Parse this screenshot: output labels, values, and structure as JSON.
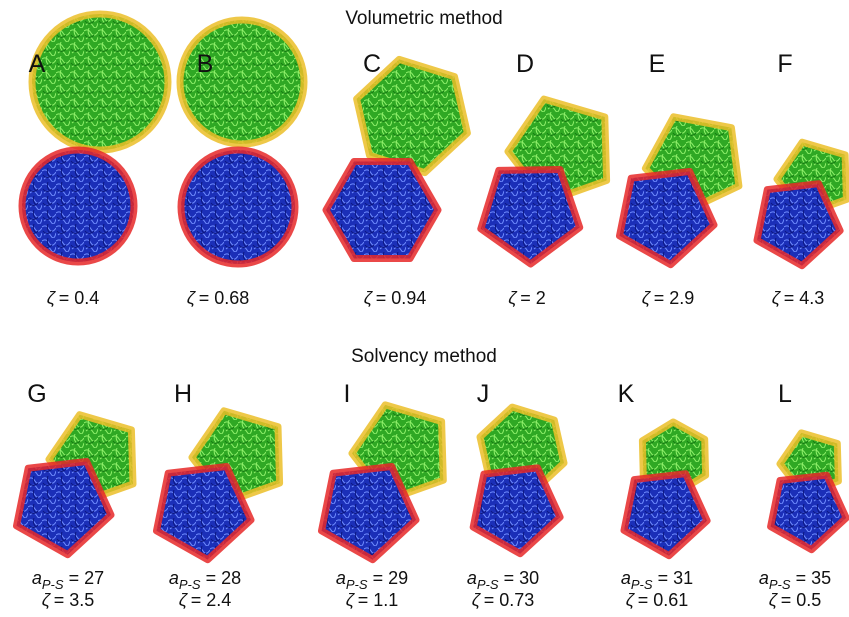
{
  "sections": [
    {
      "title": "Volumetric method",
      "panels": [
        {
          "letter": "A",
          "zeta": {
            "symbol": "ζ",
            "text": "= 0.4"
          }
        },
        {
          "letter": "B",
          "zeta": {
            "symbol": "ζ",
            "text": "= 0.68"
          }
        },
        {
          "letter": "C",
          "zeta": {
            "symbol": "ζ",
            "text": "= 0.94"
          }
        },
        {
          "letter": "D",
          "zeta": {
            "symbol": "ζ",
            "text": "= 2"
          }
        },
        {
          "letter": "E",
          "zeta": {
            "symbol": "ζ",
            "text": "= 2.9"
          }
        },
        {
          "letter": "F",
          "zeta": {
            "symbol": "ζ",
            "text": "= 4.3"
          }
        }
      ]
    },
    {
      "title": "Solvency method",
      "panels": [
        {
          "letter": "G",
          "a": {
            "symbol": "a",
            "sub": "P-S",
            "text": " = 27"
          },
          "zeta": {
            "symbol": "ζ",
            "text": "= 3.5"
          }
        },
        {
          "letter": "H",
          "a": {
            "symbol": "a",
            "sub": "P-S",
            "text": " = 28"
          },
          "zeta": {
            "symbol": "ζ",
            "text": "= 2.4"
          }
        },
        {
          "letter": "I",
          "a": {
            "symbol": "a",
            "sub": "P-S",
            "text": " = 29"
          },
          "zeta": {
            "symbol": "ζ",
            "text": "= 1.1"
          }
        },
        {
          "letter": "J",
          "a": {
            "symbol": "a",
            "sub": "P-S",
            "text": " = 30"
          },
          "zeta": {
            "symbol": "ζ",
            "text": "= 0.73"
          }
        },
        {
          "letter": "K",
          "a": {
            "symbol": "a",
            "sub": "P-S",
            "text": " = 31"
          },
          "zeta": {
            "symbol": "ζ",
            "text": "= 0.61"
          }
        },
        {
          "letter": "L",
          "a": {
            "symbol": "a",
            "sub": "P-S",
            "text": " = 35"
          },
          "zeta": {
            "symbol": "ζ",
            "text": "= 0.5"
          }
        }
      ]
    }
  ]
}
